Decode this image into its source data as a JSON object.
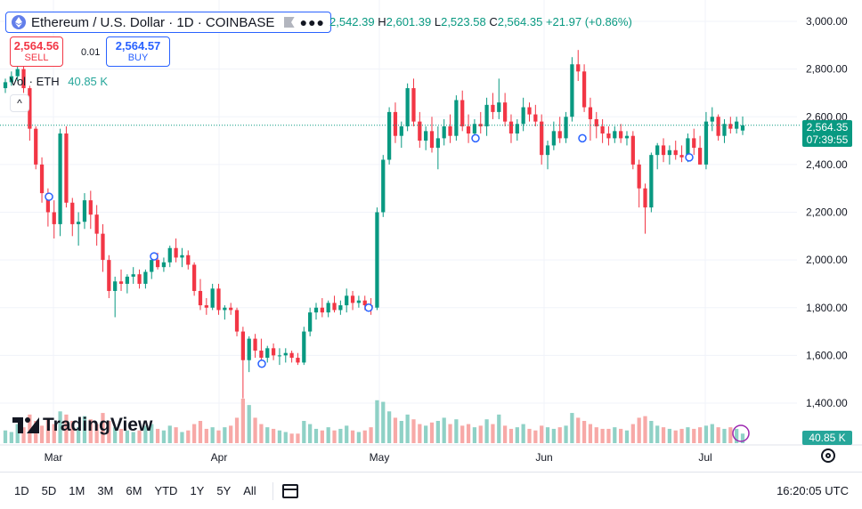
{
  "symbol": {
    "title": "Ethereum / U.S. Dollar · 1D · COINBASE",
    "icon": "ethereum-icon",
    "flag_icon": "flag-icon",
    "more_icon": "more-dots-icon"
  },
  "ohlc": {
    "open_prefix": "",
    "open": "2,542.39",
    "high_prefix": "H",
    "high": "2,601.39",
    "low_prefix": "L",
    "low": "2,523.58",
    "close_prefix": "C",
    "close": "2,564.35",
    "change": "+21.97 (+0.86%)"
  },
  "trade": {
    "sell_price": "2,564.56",
    "sell_label": "SELL",
    "spread": "0.01",
    "buy_price": "2,564.57",
    "buy_label": "BUY"
  },
  "volume_legend": {
    "label": "Vol · ETH",
    "value": "40.85 K"
  },
  "collapse_icon": "chevron-up-icon",
  "last_price": {
    "price": "2,564.35",
    "countdown": "07:39:55"
  },
  "volume_badge": "40.85 K",
  "branding": {
    "logo_text": "TradingView"
  },
  "colors": {
    "up": "#089981",
    "down": "#f23645",
    "vol_up": "#8fd1c6",
    "vol_down": "#f7a9a7",
    "accent": "#2962ff"
  },
  "chart_data": {
    "type": "candlestick",
    "y_axis_ticks": [
      "3,000.00",
      "2,800.00",
      "2,600.00",
      "2,400.00",
      "2,200.00",
      "2,000.00",
      "1,800.00",
      "1,600.00",
      "1,400.00"
    ],
    "y_tick_values": [
      3000,
      2800,
      2600,
      2400,
      2200,
      2000,
      1800,
      1600,
      1400
    ],
    "x_axis_labels": [
      "Mar",
      "Apr",
      "May",
      "Jun",
      "Jul"
    ],
    "ylim": [
      1400,
      3000
    ],
    "grid": true,
    "last_close": 2564.35,
    "candles_ohlc": [
      [
        2720,
        2760,
        2700,
        2745
      ],
      [
        2745,
        2790,
        2730,
        2770
      ],
      [
        2770,
        2820,
        2750,
        2800
      ],
      [
        2800,
        2830,
        2700,
        2720
      ],
      [
        2720,
        2730,
        2500,
        2550
      ],
      [
        2550,
        2560,
        2380,
        2400
      ],
      [
        2400,
        2430,
        2240,
        2280
      ],
      [
        2280,
        2300,
        2140,
        2200
      ],
      [
        2200,
        2250,
        2090,
        2150
      ],
      [
        2150,
        2550,
        2100,
        2530
      ],
      [
        2530,
        2560,
        2220,
        2240
      ],
      [
        2240,
        2260,
        2100,
        2150
      ],
      [
        2150,
        2200,
        2060,
        2160
      ],
      [
        2160,
        2280,
        2130,
        2250
      ],
      [
        2250,
        2290,
        2130,
        2190
      ],
      [
        2190,
        2230,
        2060,
        2110
      ],
      [
        2110,
        2150,
        1950,
        2000
      ],
      [
        2000,
        2020,
        1840,
        1870
      ],
      [
        1870,
        1930,
        1760,
        1910
      ],
      [
        1910,
        1960,
        1870,
        1900
      ],
      [
        1900,
        1940,
        1860,
        1930
      ],
      [
        1930,
        1970,
        1900,
        1940
      ],
      [
        1940,
        1960,
        1880,
        1900
      ],
      [
        1900,
        1960,
        1880,
        1950
      ],
      [
        1950,
        2020,
        1920,
        2000
      ],
      [
        2000,
        2030,
        1960,
        1970
      ],
      [
        1970,
        2010,
        1950,
        1990
      ],
      [
        1990,
        2060,
        1970,
        2050
      ],
      [
        2050,
        2090,
        1990,
        2010
      ],
      [
        2010,
        2050,
        1970,
        2020
      ],
      [
        2020,
        2040,
        1960,
        1980
      ],
      [
        1980,
        1990,
        1850,
        1870
      ],
      [
        1870,
        1920,
        1790,
        1810
      ],
      [
        1810,
        1840,
        1770,
        1800
      ],
      [
        1800,
        1900,
        1790,
        1880
      ],
      [
        1880,
        1900,
        1770,
        1790
      ],
      [
        1790,
        1810,
        1750,
        1800
      ],
      [
        1800,
        1820,
        1770,
        1790
      ],
      [
        1790,
        1800,
        1680,
        1700
      ],
      [
        1700,
        1720,
        1420,
        1580
      ],
      [
        1580,
        1680,
        1530,
        1670
      ],
      [
        1670,
        1690,
        1590,
        1620
      ],
      [
        1620,
        1670,
        1560,
        1590
      ],
      [
        1590,
        1640,
        1570,
        1630
      ],
      [
        1630,
        1650,
        1580,
        1600
      ],
      [
        1600,
        1630,
        1560,
        1600
      ],
      [
        1600,
        1630,
        1570,
        1610
      ],
      [
        1610,
        1620,
        1570,
        1590
      ],
      [
        1590,
        1610,
        1560,
        1570
      ],
      [
        1570,
        1720,
        1560,
        1700
      ],
      [
        1700,
        1800,
        1680,
        1780
      ],
      [
        1780,
        1820,
        1750,
        1800
      ],
      [
        1800,
        1840,
        1760,
        1780
      ],
      [
        1780,
        1830,
        1760,
        1820
      ],
      [
        1820,
        1850,
        1780,
        1790
      ],
      [
        1790,
        1830,
        1770,
        1810
      ],
      [
        1810,
        1880,
        1780,
        1850
      ],
      [
        1850,
        1870,
        1790,
        1820
      ],
      [
        1820,
        1850,
        1800,
        1830
      ],
      [
        1830,
        1850,
        1790,
        1810
      ],
      [
        1810,
        1840,
        1770,
        1800
      ],
      [
        1800,
        2220,
        1790,
        2200
      ],
      [
        2200,
        2440,
        2180,
        2420
      ],
      [
        2420,
        2640,
        2400,
        2620
      ],
      [
        2620,
        2660,
        2490,
        2520
      ],
      [
        2520,
        2580,
        2470,
        2560
      ],
      [
        2560,
        2740,
        2540,
        2720
      ],
      [
        2720,
        2760,
        2560,
        2580
      ],
      [
        2580,
        2620,
        2470,
        2500
      ],
      [
        2500,
        2560,
        2460,
        2540
      ],
      [
        2540,
        2600,
        2450,
        2470
      ],
      [
        2470,
        2560,
        2380,
        2510
      ],
      [
        2510,
        2590,
        2480,
        2560
      ],
      [
        2560,
        2610,
        2490,
        2520
      ],
      [
        2520,
        2690,
        2500,
        2670
      ],
      [
        2670,
        2710,
        2540,
        2560
      ],
      [
        2560,
        2610,
        2490,
        2530
      ],
      [
        2530,
        2590,
        2510,
        2570
      ],
      [
        2570,
        2620,
        2530,
        2560
      ],
      [
        2560,
        2680,
        2520,
        2650
      ],
      [
        2650,
        2700,
        2590,
        2620
      ],
      [
        2620,
        2760,
        2590,
        2660
      ],
      [
        2660,
        2700,
        2560,
        2580
      ],
      [
        2580,
        2610,
        2490,
        2530
      ],
      [
        2530,
        2590,
        2500,
        2570
      ],
      [
        2570,
        2680,
        2540,
        2640
      ],
      [
        2640,
        2660,
        2580,
        2610
      ],
      [
        2610,
        2650,
        2560,
        2580
      ],
      [
        2580,
        2610,
        2400,
        2440
      ],
      [
        2440,
        2500,
        2380,
        2480
      ],
      [
        2480,
        2580,
        2460,
        2540
      ],
      [
        2540,
        2600,
        2490,
        2510
      ],
      [
        2510,
        2620,
        2490,
        2600
      ],
      [
        2600,
        2850,
        2580,
        2820
      ],
      [
        2820,
        2880,
        2750,
        2790
      ],
      [
        2790,
        2820,
        2620,
        2640
      ],
      [
        2640,
        2680,
        2500,
        2590
      ],
      [
        2590,
        2620,
        2510,
        2560
      ],
      [
        2560,
        2590,
        2490,
        2530
      ],
      [
        2530,
        2560,
        2480,
        2510
      ],
      [
        2510,
        2560,
        2490,
        2540
      ],
      [
        2540,
        2570,
        2490,
        2510
      ],
      [
        2510,
        2540,
        2480,
        2520
      ],
      [
        2520,
        2540,
        2380,
        2400
      ],
      [
        2400,
        2420,
        2220,
        2300
      ],
      [
        2300,
        2320,
        2110,
        2220
      ],
      [
        2220,
        2450,
        2200,
        2440
      ],
      [
        2440,
        2490,
        2380,
        2480
      ],
      [
        2480,
        2510,
        2410,
        2440
      ],
      [
        2440,
        2480,
        2400,
        2460
      ],
      [
        2460,
        2500,
        2420,
        2440
      ],
      [
        2440,
        2480,
        2410,
        2430
      ],
      [
        2430,
        2530,
        2410,
        2510
      ],
      [
        2510,
        2550,
        2440,
        2470
      ],
      [
        2470,
        2520,
        2400,
        2400
      ],
      [
        2400,
        2620,
        2380,
        2580
      ],
      [
        2580,
        2640,
        2540,
        2600
      ],
      [
        2600,
        2610,
        2500,
        2520
      ],
      [
        2520,
        2590,
        2490,
        2570
      ],
      [
        2570,
        2600,
        2530,
        2550
      ],
      [
        2550,
        2600,
        2530,
        2580
      ],
      [
        2542.39,
        2601.39,
        2523.58,
        2564.35
      ]
    ],
    "volume_relative": [
      0.4,
      0.35,
      0.6,
      0.5,
      0.9,
      0.7,
      0.55,
      0.8,
      0.6,
      1.0,
      0.9,
      0.7,
      0.5,
      0.85,
      0.75,
      0.6,
      0.95,
      0.7,
      0.5,
      0.45,
      0.4,
      0.35,
      0.4,
      0.55,
      0.6,
      0.45,
      0.4,
      0.55,
      0.5,
      0.35,
      0.4,
      0.6,
      0.7,
      0.45,
      0.5,
      0.4,
      0.5,
      0.55,
      0.8,
      1.4,
      1.2,
      0.8,
      0.6,
      0.5,
      0.45,
      0.4,
      0.35,
      0.3,
      0.3,
      0.7,
      0.6,
      0.45,
      0.4,
      0.5,
      0.4,
      0.45,
      0.55,
      0.4,
      0.35,
      0.4,
      0.5,
      1.35,
      1.3,
      1.0,
      0.8,
      0.7,
      0.9,
      0.75,
      0.6,
      0.55,
      0.65,
      0.7,
      0.8,
      0.6,
      0.75,
      0.55,
      0.6,
      0.5,
      0.55,
      0.75,
      0.6,
      0.9,
      0.55,
      0.45,
      0.5,
      0.6,
      0.45,
      0.4,
      0.55,
      0.5,
      0.45,
      0.5,
      0.55,
      0.95,
      0.8,
      0.7,
      0.6,
      0.5,
      0.45,
      0.45,
      0.5,
      0.45,
      0.4,
      0.6,
      0.8,
      0.85,
      0.7,
      0.55,
      0.5,
      0.45,
      0.4,
      0.45,
      0.5,
      0.45,
      0.5,
      0.55,
      0.6,
      0.5,
      0.45,
      0.5,
      0.45,
      0.3
    ]
  },
  "bottom_bar": {
    "ranges": [
      "1D",
      "5D",
      "1M",
      "3M",
      "6M",
      "YTD",
      "1Y",
      "5Y",
      "All"
    ],
    "calendar_icon": "calendar-range-icon",
    "clock": "16:20:05 UTC"
  },
  "settings_icon": "gear-icon"
}
